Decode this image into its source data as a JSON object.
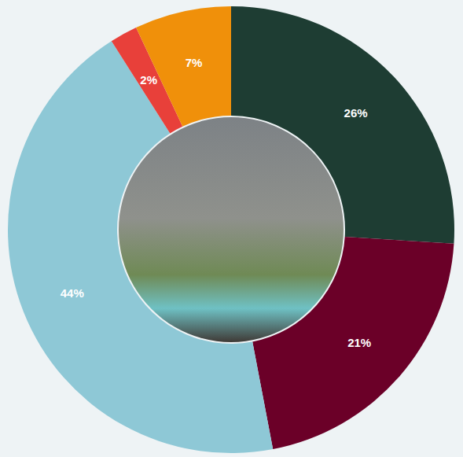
{
  "chart_data": {
    "type": "pie",
    "values": [
      26,
      21,
      44,
      2,
      7
    ],
    "value_labels": [
      "26%",
      "21%",
      "44%",
      "2%",
      "7%"
    ],
    "colors": [
      "#1e3d33",
      "#6b0028",
      "#8ec8d6",
      "#e8403a",
      "#f0900a"
    ],
    "data_labels": true
  }
}
